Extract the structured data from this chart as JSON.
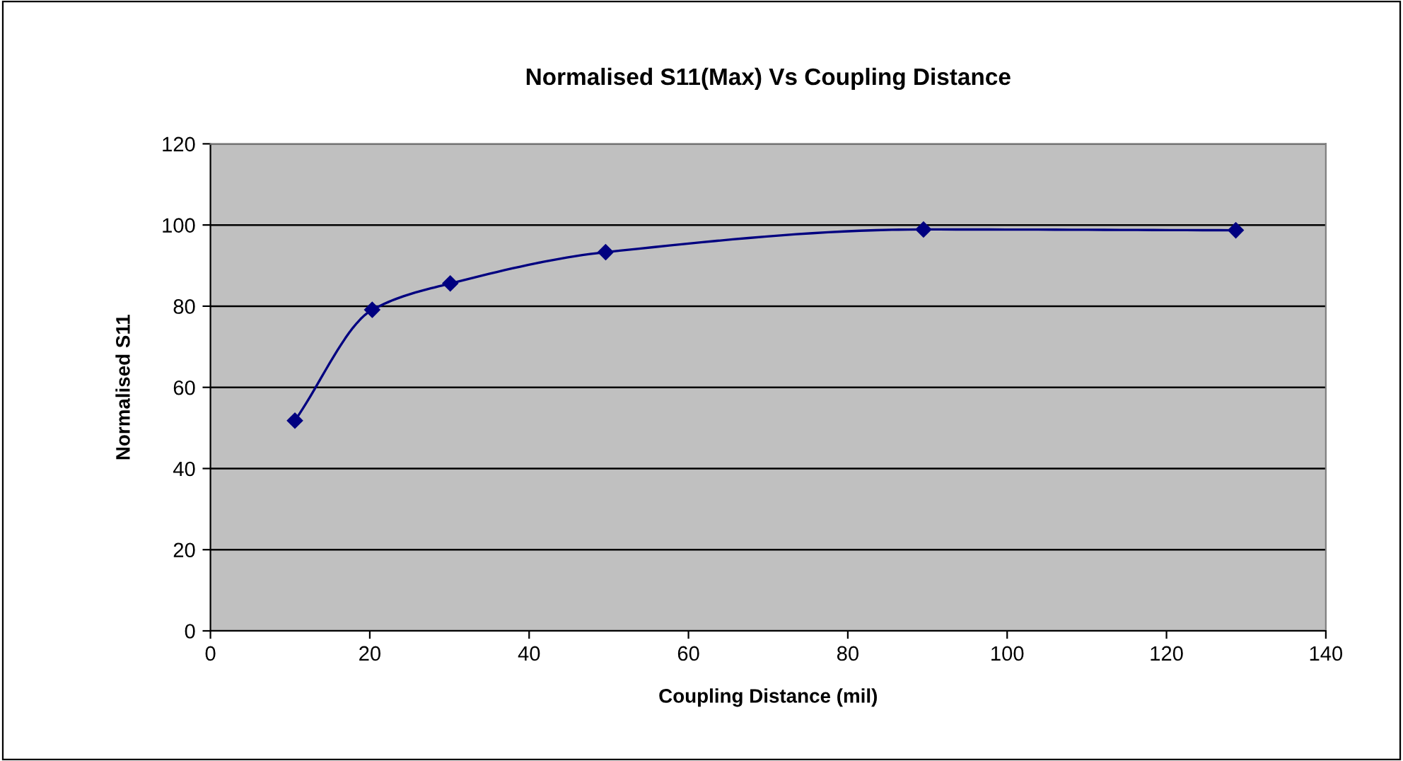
{
  "chart_data": {
    "type": "line",
    "title": "Normalised S11(Max) Vs Coupling Distance",
    "xlabel": "Coupling Distance (mil)",
    "ylabel": "Normalised S11",
    "x": [
      10.6,
      20.3,
      30.1,
      49.6,
      89.5,
      128.7
    ],
    "series": [
      {
        "color": "#000080",
        "values": [
          51.8,
          79.1,
          85.6,
          93.3,
          98.9,
          98.7
        ]
      }
    ],
    "xlim": [
      0,
      140
    ],
    "xticks": [
      0,
      20,
      40,
      60,
      80,
      100,
      120,
      140
    ],
    "ylim": [
      0,
      120
    ],
    "yticks": [
      0,
      20,
      40,
      60,
      80,
      100,
      120
    ],
    "grid": "y",
    "marker": "diamond",
    "line_style": "solid"
  }
}
